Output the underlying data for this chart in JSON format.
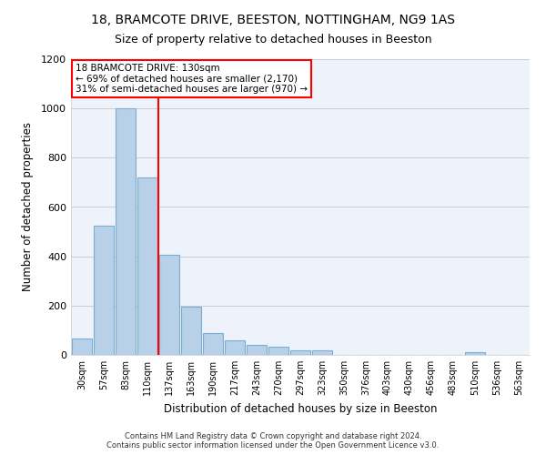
{
  "title1": "18, BRAMCOTE DRIVE, BEESTON, NOTTINGHAM, NG9 1AS",
  "title2": "Size of property relative to detached houses in Beeston",
  "xlabel": "Distribution of detached houses by size in Beeston",
  "ylabel": "Number of detached properties",
  "footer1": "Contains HM Land Registry data © Crown copyright and database right 2024.",
  "footer2": "Contains public sector information licensed under the Open Government Licence v3.0.",
  "categories": [
    "30sqm",
    "57sqm",
    "83sqm",
    "110sqm",
    "137sqm",
    "163sqm",
    "190sqm",
    "217sqm",
    "243sqm",
    "270sqm",
    "297sqm",
    "323sqm",
    "350sqm",
    "376sqm",
    "403sqm",
    "430sqm",
    "456sqm",
    "483sqm",
    "510sqm",
    "536sqm",
    "563sqm"
  ],
  "values": [
    65,
    525,
    1000,
    720,
    405,
    195,
    90,
    60,
    40,
    32,
    20,
    18,
    0,
    0,
    0,
    0,
    0,
    0,
    12,
    0,
    0
  ],
  "bar_color": "#b8d0e8",
  "bar_edgecolor": "#7aadd4",
  "grid_color": "#c8c8c8",
  "bg_color": "#eef2fa",
  "vline_color": "red",
  "vline_pos": 4.0,
  "annotation_title": "18 BRAMCOTE DRIVE: 130sqm",
  "annotation_line1": "← 69% of detached houses are smaller (2,170)",
  "annotation_line2": "31% of semi-detached houses are larger (970) →",
  "ylim": [
    0,
    1200
  ],
  "yticks": [
    0,
    200,
    400,
    600,
    800,
    1000,
    1200
  ],
  "title1_fontsize": 10,
  "title2_fontsize": 9
}
